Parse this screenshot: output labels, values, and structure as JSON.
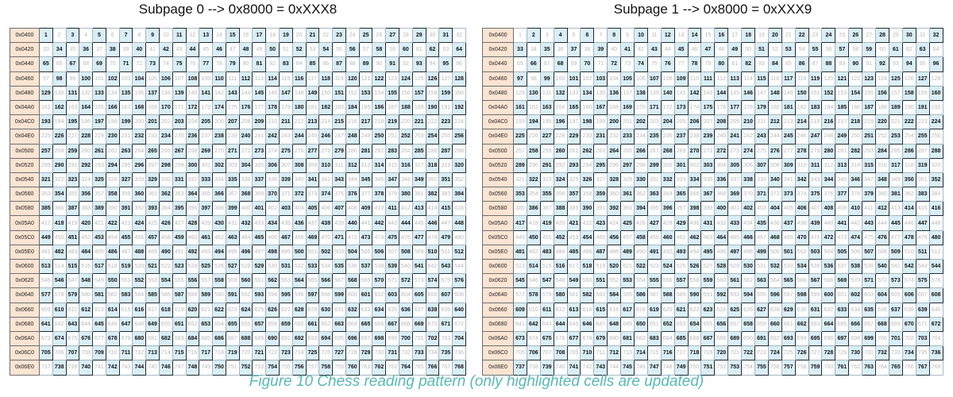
{
  "panels": [
    {
      "title": "Subpage 0 --> 0x8000 = 0xXXX8",
      "highlight_parity": 0
    },
    {
      "title": "Subpage 1 --> 0x8000 = 0xXXX9",
      "highlight_parity": 1
    }
  ],
  "row_addresses": [
    "0x0400",
    "0x0420",
    "0x0440",
    "0x0460",
    "0x0480",
    "0x04A0",
    "0x04C0",
    "0x04E0",
    "0x0500",
    "0x0520",
    "0x0540",
    "0x0560",
    "0x0580",
    "0x05A0",
    "0x05C0",
    "0x05E0",
    "0x0600",
    "0x0620",
    "0x0640",
    "0x0660",
    "0x0680",
    "0x06A0",
    "0x06C0",
    "0x06E0"
  ],
  "columns_per_row": 32,
  "first_cell_number": 1,
  "caption": "Figure 10 Chess reading pattern (only highlighted cells are updated)",
  "colors": {
    "address_fill": "#fbe4d2",
    "highlight_fill": "#d9eef6",
    "caption_text": "#58b9b5"
  }
}
